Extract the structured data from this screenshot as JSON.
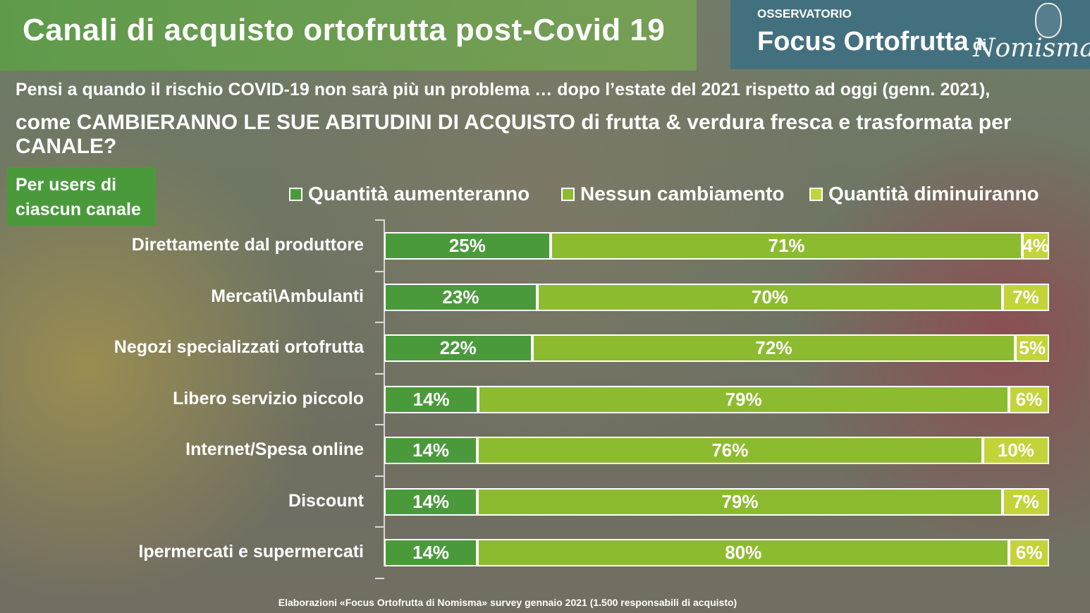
{
  "header": {
    "title": "Canali di acquisto ortofrutta post-Covid 19",
    "brand_osservatorio": "OSSERVATORIO",
    "brand_focus": "Focus Ortofrutta",
    "brand_di": "di",
    "brand_nomisma": "Nomisma"
  },
  "question": {
    "line1": "Pensi a quando il rischio COVID-19 non sarà più un problema … dopo l’estate del 2021 rispetto ad oggi (genn. 2021),",
    "line2": "come CAMBIERANNO LE SUE ABITUDINI DI ACQUISTO di frutta & verdura fresca e trasformata per CANALE?"
  },
  "users_box": {
    "line1": "Per users di",
    "line2": "ciascun canale"
  },
  "colors": {
    "increase": "#4a9a3c",
    "no_change": "#8dbb2f",
    "decrease": "#c3d33a"
  },
  "chart_data": {
    "type": "bar",
    "orientation": "horizontal",
    "stacked": true,
    "xlim": [
      0,
      100
    ],
    "legend_position": "top",
    "categories": [
      "Direttamente dal produttore",
      "Mercati\\Ambulanti",
      "Negozi specializzati ortofrutta",
      "Libero servizio piccolo",
      "Internet/Spesa online",
      "Discount",
      "Ipermercati e supermercati"
    ],
    "series": [
      {
        "name": "Quantità  aumenteranno",
        "values": [
          25,
          23,
          22,
          14,
          14,
          14,
          14
        ]
      },
      {
        "name": "Nessun cambiamento",
        "values": [
          71,
          70,
          72,
          79,
          76,
          79,
          80
        ]
      },
      {
        "name": "Quantità diminuiranno",
        "values": [
          4,
          7,
          5,
          6,
          10,
          7,
          6
        ]
      }
    ]
  },
  "footnote": "Elaborazioni «Focus Ortofrutta di Nomisma» survey gennaio 2021 (1.500 responsabili di acquisto)"
}
